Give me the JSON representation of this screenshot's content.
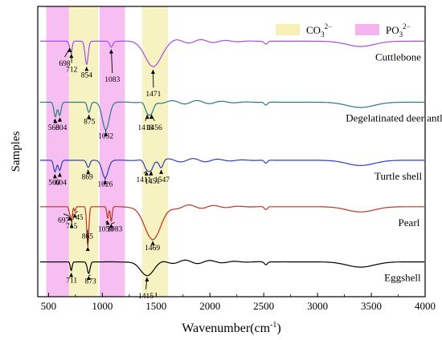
{
  "chart_data": {
    "type": "line",
    "xlabel": "Wavenumber(cm",
    "xlabel_sup": "-1",
    "xlabel_close": ")",
    "ylabel": "Samples",
    "xlim": [
      400,
      4000
    ],
    "xticks": [
      500,
      1000,
      1500,
      2000,
      2500,
      3000,
      3500,
      4000
    ],
    "grid": false,
    "legend": {
      "position": "top-right",
      "items": [
        {
          "base": "CO",
          "sub": "3",
          "sup": "2−",
          "color": "#f6f0b6"
        },
        {
          "base": "PO",
          "sub": "3",
          "sup": "2−",
          "color": "#f5b3ef"
        }
      ]
    },
    "bands": [
      {
        "type": "PO",
        "range": [
          480,
          690
        ],
        "color": "#f5b3ef"
      },
      {
        "type": "CO",
        "range": [
          690,
          960
        ],
        "color": "#f6f0b6"
      },
      {
        "type": "PO",
        "range": [
          975,
          1210
        ],
        "color": "#f5b3ef"
      },
      {
        "type": "CO",
        "range": [
          1370,
          1610
        ],
        "color": "#f6f0b6"
      }
    ],
    "series": [
      {
        "name": "Cuttlebone",
        "color": "#a64ee0",
        "baseline": 0.88,
        "label_x": 3750,
        "peaks": [
          {
            "x": 698,
            "depth": 0.015,
            "width": 15,
            "label": "698",
            "lx": 650,
            "ly": 0.795
          },
          {
            "x": 712,
            "depth": 0.035,
            "width": 12,
            "label": "712",
            "lx": 715,
            "ly": 0.775
          },
          {
            "x": 854,
            "depth": 0.08,
            "width": 20,
            "label": "854",
            "lx": 855,
            "ly": 0.755
          },
          {
            "x": 1083,
            "depth": 0.02,
            "width": 20,
            "label": "1083",
            "lx": 1093,
            "ly": 0.74
          },
          {
            "x": 1471,
            "depth": 0.09,
            "width": 100,
            "label": "1471",
            "lx": 1475,
            "ly": 0.69
          }
        ]
      },
      {
        "name": "Degelatinated deer antler",
        "color": "#2e7a80",
        "baseline": 0.67,
        "label_x": 3750,
        "peaks": [
          {
            "x": 563,
            "depth": 0.05,
            "width": 18,
            "label": "563",
            "lx": 548,
            "ly": 0.575
          },
          {
            "x": 604,
            "depth": 0.045,
            "width": 18,
            "label": "604",
            "lx": 618,
            "ly": 0.575
          },
          {
            "x": 875,
            "depth": 0.035,
            "width": 20,
            "label": "875",
            "lx": 880,
            "ly": 0.595
          },
          {
            "x": 1032,
            "depth": 0.095,
            "width": 45,
            "label": "1032",
            "lx": 1032,
            "ly": 0.545
          },
          {
            "x": 1418,
            "depth": 0.035,
            "width": 30,
            "label": "1418",
            "lx": 1400,
            "ly": 0.575
          },
          {
            "x": 1456,
            "depth": 0.035,
            "width": 30,
            "label": "1456",
            "lx": 1485,
            "ly": 0.575
          }
        ]
      },
      {
        "name": "Turtle shell",
        "color": "#2f3fbf",
        "baseline": 0.47,
        "label_x": 3750,
        "peaks": [
          {
            "x": 560,
            "depth": 0.04,
            "width": 18,
            "label": "560",
            "lx": 552,
            "ly": 0.385
          },
          {
            "x": 604,
            "depth": 0.035,
            "width": 18,
            "label": "604",
            "lx": 615,
            "ly": 0.385
          },
          {
            "x": 869,
            "depth": 0.025,
            "width": 20,
            "label": "869",
            "lx": 860,
            "ly": 0.405
          },
          {
            "x": 1026,
            "depth": 0.06,
            "width": 40,
            "label": "1026",
            "lx": 1026,
            "ly": 0.38
          },
          {
            "x": 1411,
            "depth": 0.03,
            "width": 30,
            "label": "1411",
            "lx": 1385,
            "ly": 0.395
          },
          {
            "x": 1451,
            "depth": 0.03,
            "width": 30,
            "label": "1451",
            "lx": 1465,
            "ly": 0.39
          },
          {
            "x": 1547,
            "depth": 0.025,
            "width": 25,
            "label": "1547",
            "lx": 1555,
            "ly": 0.395
          }
        ]
      },
      {
        "name": "Pearl",
        "color": "#c0331c",
        "baseline": 0.31,
        "label_x": 3850,
        "peaks": [
          {
            "x": 697,
            "depth": 0.025,
            "width": 10,
            "label": "697",
            "lx": 640,
            "ly": 0.255
          },
          {
            "x": 715,
            "depth": 0.05,
            "width": 10,
            "label": "715",
            "lx": 715,
            "ly": 0.235
          },
          {
            "x": 745,
            "depth": 0.015,
            "width": 10,
            "label": "745",
            "lx": 770,
            "ly": 0.265
          },
          {
            "x": 865,
            "depth": 0.13,
            "width": 14,
            "label": "865",
            "lx": 862,
            "ly": 0.2
          },
          {
            "x": 1050,
            "depth": 0.04,
            "width": 12,
            "label": "1050",
            "lx": 1030,
            "ly": 0.225
          },
          {
            "x": 1083,
            "depth": 0.05,
            "width": 12,
            "label": "1083",
            "lx": 1115,
            "ly": 0.225
          },
          {
            "x": 1469,
            "depth": 0.11,
            "width": 110,
            "label": "1469",
            "lx": 1465,
            "ly": 0.16
          }
        ]
      },
      {
        "name": "Eggshell",
        "color": "#000000",
        "baseline": 0.12,
        "label_x": 3790,
        "peaks": [
          {
            "x": 711,
            "depth": 0.03,
            "width": 12,
            "label": "711",
            "lx": 715,
            "ly": 0.048
          },
          {
            "x": 873,
            "depth": 0.04,
            "width": 18,
            "label": "873",
            "lx": 890,
            "ly": 0.045
          },
          {
            "x": 1415,
            "depth": 0.045,
            "width": 90,
            "label": "1415",
            "lx": 1405,
            "ly": -0.005
          }
        ]
      }
    ]
  }
}
